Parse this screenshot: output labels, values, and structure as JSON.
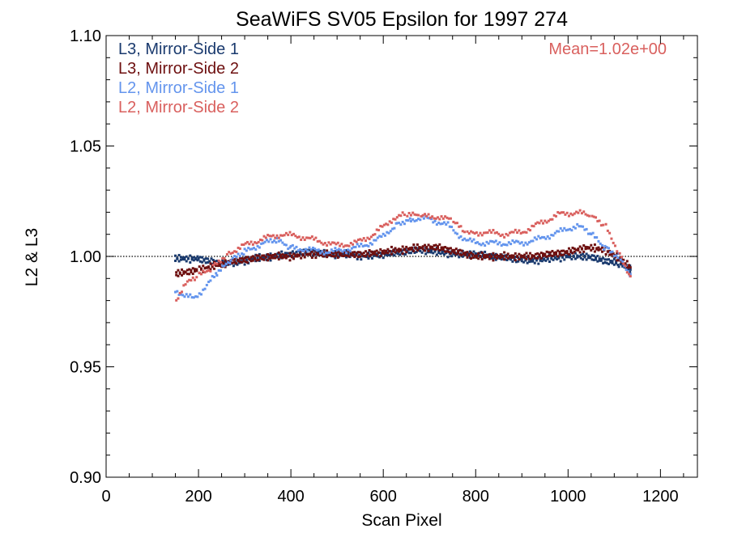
{
  "chart_data": {
    "type": "scatter",
    "title": "SeaWiFS SV05 Epsilon for 1997 274",
    "xlabel": "Scan Pixel",
    "ylabel": "L2 & L3",
    "xlim": [
      0,
      1280
    ],
    "ylim": [
      0.9,
      1.1
    ],
    "x_ticks": [
      0,
      200,
      400,
      600,
      800,
      1000,
      1200
    ],
    "x_tick_labels": [
      "0",
      "200",
      "400",
      "600",
      "800",
      "1000",
      "1200"
    ],
    "y_ticks": [
      0.9,
      0.95,
      1.0,
      1.05,
      1.1
    ],
    "y_tick_labels": [
      "0.90",
      "0.95",
      "1.00",
      "1.05",
      "1.10"
    ],
    "reference_line": {
      "y": 1.0,
      "style": "dotted"
    },
    "annotation": "Mean=1.02e+00",
    "legend_placement": "top-left",
    "grid": false,
    "series": [
      {
        "name": "L3, Mirror-Side 1",
        "color": "#1a3a6e",
        "x": [
          150,
          200,
          240,
          280,
          320,
          360,
          400,
          440,
          480,
          520,
          560,
          600,
          640,
          680,
          720,
          760,
          800,
          840,
          880,
          920,
          960,
          1000,
          1040,
          1080,
          1110,
          1135
        ],
        "values": [
          0.999,
          0.999,
          0.997,
          0.997,
          0.999,
          1.0,
          1.001,
          1.002,
          1.001,
          1.001,
          1.0,
          1.001,
          1.002,
          1.003,
          1.002,
          1.001,
          1.001,
          1.0,
          0.999,
          0.998,
          0.999,
          1.0,
          1.0,
          0.998,
          0.997,
          0.994
        ]
      },
      {
        "name": "L3, Mirror-Side 2",
        "color": "#6e1010",
        "x": [
          150,
          200,
          240,
          280,
          320,
          360,
          400,
          440,
          480,
          520,
          560,
          600,
          640,
          680,
          720,
          760,
          800,
          840,
          880,
          920,
          960,
          1000,
          1040,
          1080,
          1110,
          1135
        ],
        "values": [
          0.992,
          0.994,
          0.996,
          0.998,
          0.999,
          1.0,
          1.0,
          1.001,
          1.001,
          1.001,
          1.001,
          1.002,
          1.003,
          1.004,
          1.004,
          1.002,
          1.0,
          1.0,
          1.0,
          1.0,
          1.001,
          1.002,
          1.004,
          1.003,
          0.999,
          0.995
        ]
      },
      {
        "name": "L2, Mirror-Side 1",
        "color": "#6495ed",
        "x": [
          150,
          170,
          190,
          210,
          240,
          270,
          300,
          340,
          370,
          400,
          440,
          480,
          520,
          560,
          600,
          630,
          660,
          700,
          740,
          780,
          820,
          860,
          900,
          940,
          980,
          1020,
          1050,
          1080,
          1110,
          1135
        ],
        "values": [
          0.985,
          0.982,
          0.981,
          0.985,
          0.992,
          0.998,
          1.002,
          1.006,
          1.007,
          1.004,
          1.003,
          1.002,
          1.003,
          1.005,
          1.009,
          1.015,
          1.017,
          1.017,
          1.014,
          1.007,
          1.006,
          1.006,
          1.006,
          1.008,
          1.011,
          1.014,
          1.01,
          1.004,
          1.0,
          0.992
        ]
      },
      {
        "name": "L2, Mirror-Side 2",
        "color": "#d9605e",
        "x": [
          150,
          170,
          200,
          230,
          260,
          300,
          340,
          380,
          420,
          460,
          500,
          540,
          580,
          620,
          650,
          680,
          720,
          750,
          780,
          820,
          860,
          900,
          940,
          980,
          1020,
          1050,
          1080,
          1110,
          1135
        ],
        "values": [
          0.98,
          0.987,
          0.991,
          0.995,
          1.001,
          1.005,
          1.008,
          1.01,
          1.009,
          1.007,
          1.005,
          1.006,
          1.01,
          1.017,
          1.019,
          1.018,
          1.018,
          1.016,
          1.01,
          1.011,
          1.01,
          1.011,
          1.015,
          1.019,
          1.02,
          1.018,
          1.014,
          1.002,
          0.991
        ]
      }
    ]
  }
}
